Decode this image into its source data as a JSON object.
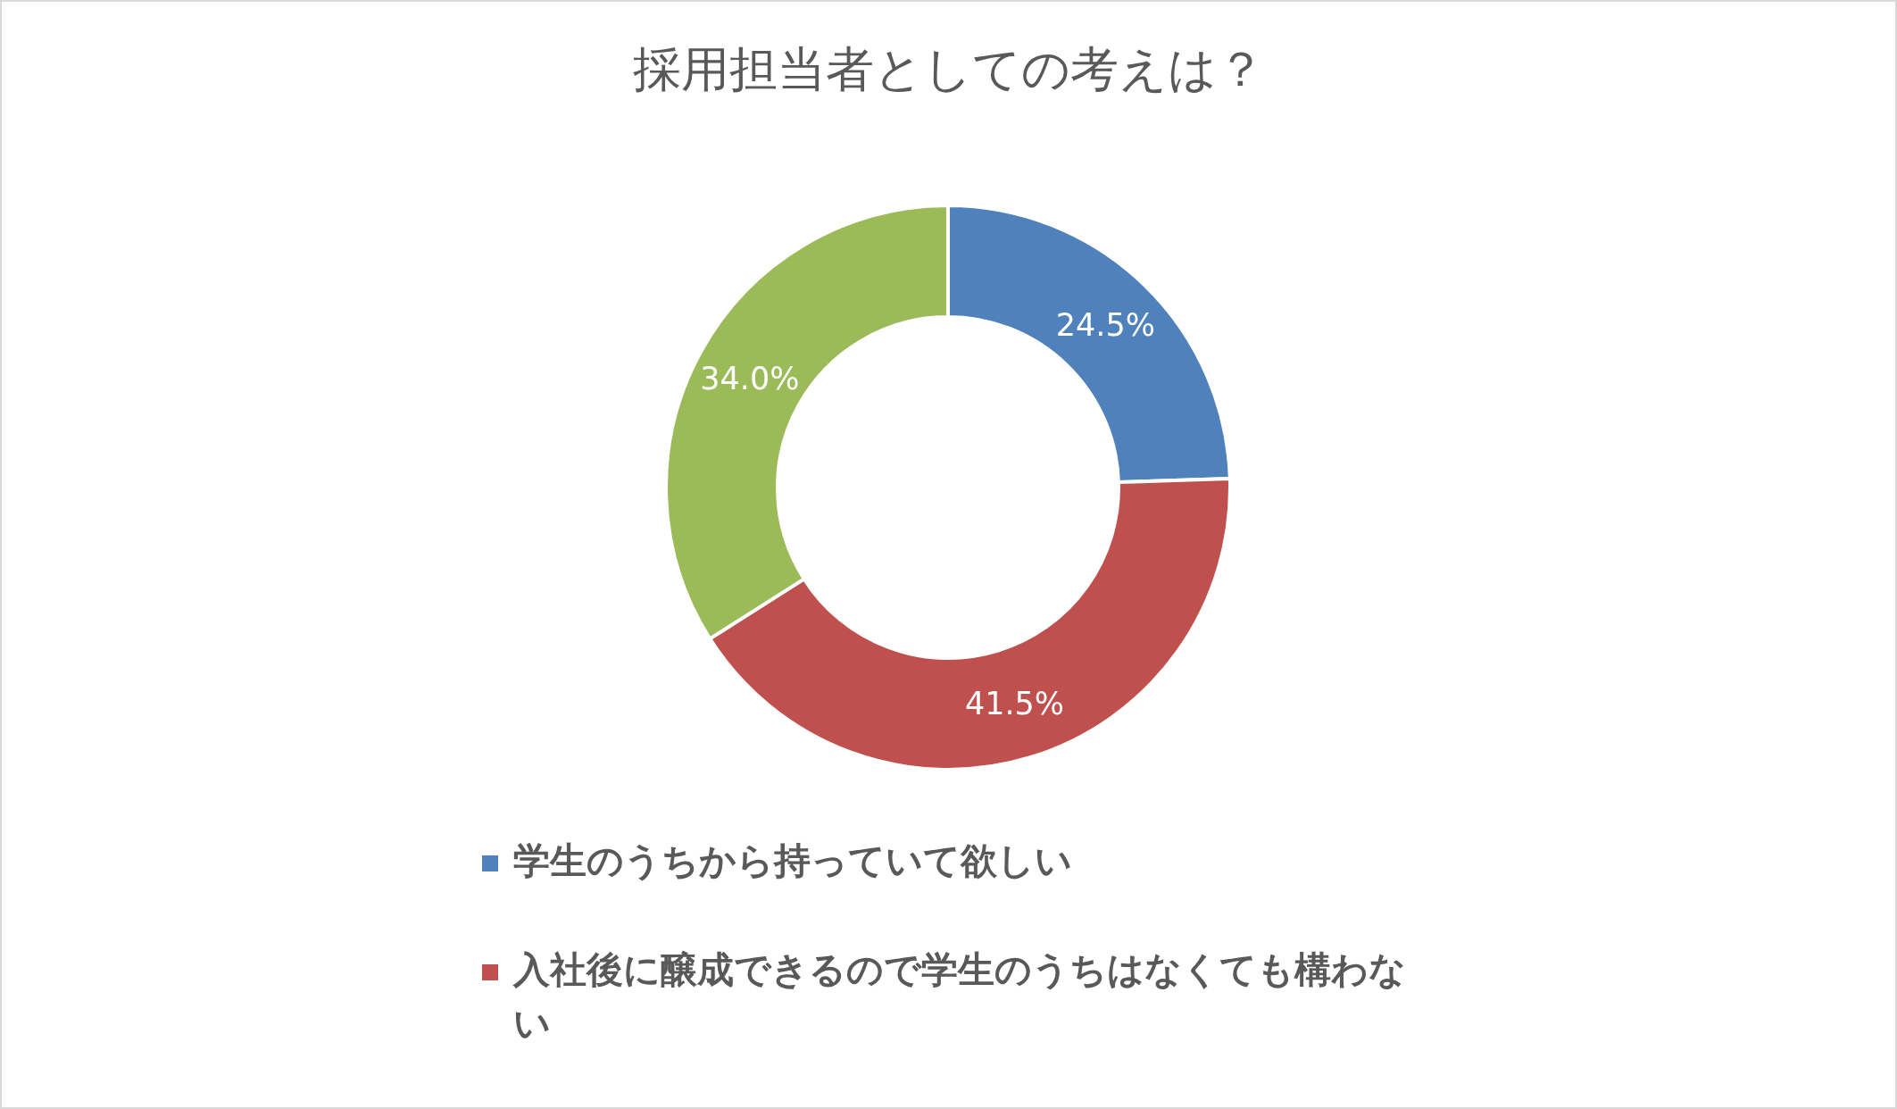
{
  "chart_data": {
    "type": "donut",
    "title": "採用担当者としての考えは？",
    "categories": [
      "学生のうちから持っていて欲しい",
      "入社後に醸成できるので学生のうちはなくても構わない",
      null
    ],
    "values": [
      24.5,
      41.5,
      34.0
    ],
    "colors": [
      "#4f81bd",
      "#c0504d",
      "#9bbb59"
    ],
    "value_labels": [
      "24.5%",
      "41.5%",
      "34.0%"
    ],
    "legend": "bottom"
  }
}
